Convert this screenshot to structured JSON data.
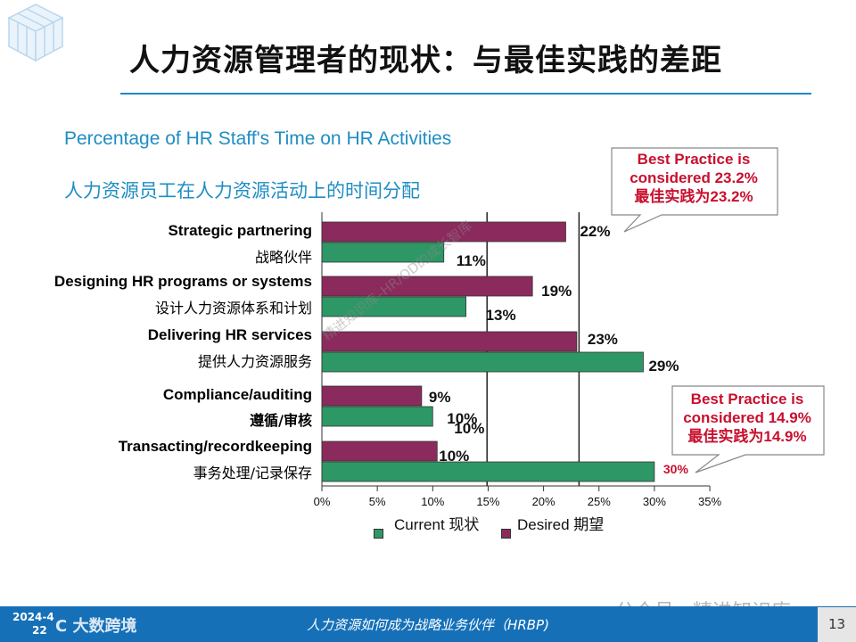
{
  "title": "人力资源管理者的现状：与最佳实践的差距",
  "subtitle_en": "Percentage of HR Staff's Time on HR Activities",
  "subtitle_cn": "人力资源员工在人力资源活动上的时间分配",
  "categories": [
    {
      "en": "Strategic partnering",
      "cn": "战略伙伴"
    },
    {
      "en": "Designing HR programs or systems",
      "cn": "设计人力资源体系和计划"
    },
    {
      "en": "Delivering HR services",
      "cn": "提供人力资源服务"
    },
    {
      "en": "Compliance/auditing",
      "cn": "遵循/审核"
    },
    {
      "en": "Transacting/recordkeeping",
      "cn": "事务处理/记录保存"
    }
  ],
  "legend": {
    "current": "Current  现状",
    "desired": "Desired  期望"
  },
  "callouts": [
    {
      "line1": "Best Practice is",
      "line2": "considered 23.2%",
      "line3": "最佳实践为23.2%"
    },
    {
      "line1": "Best Practice is",
      "line2": "considered 14.9%",
      "line3": "最佳实践为14.9%"
    }
  ],
  "footer": {
    "text": "人力资源如何成为战略业务伙伴（HRBP)",
    "page": "13",
    "date_line1": "2024-4",
    "date_line2": "22",
    "brand": "C 大数跨境"
  },
  "watermarks": {
    "diagonal": "精进知识库–HR/OD的成长智库",
    "wechat": "公众号 · 精进知识库"
  },
  "colors": {
    "current": "#2e9766",
    "desired": "#8b2a5c",
    "accent": "#1f8dc3",
    "callout": "#c8102e",
    "footer": "#1570b8"
  },
  "chart_data": {
    "type": "bar",
    "orientation": "horizontal",
    "title": "Percentage of HR Staff's Time on HR Activities",
    "categories": [
      "Strategic partnering",
      "Designing HR programs or systems",
      "Delivering HR services",
      "Compliance/auditing",
      "Transacting/recordkeeping"
    ],
    "series": [
      {
        "name": "Desired",
        "values": [
          22,
          19,
          23,
          9,
          10.4
        ],
        "labels": [
          "22%",
          "19%",
          "23%",
          "9%",
          "10%"
        ]
      },
      {
        "name": "Current",
        "values": [
          11,
          13,
          29,
          10,
          30
        ],
        "labels": [
          "11%",
          "13%",
          "29%",
          "10%",
          "30%"
        ]
      }
    ],
    "xlim": [
      0,
      35
    ],
    "xticks": [
      "0%",
      "5%",
      "10%",
      "15%",
      "20%",
      "25%",
      "30%",
      "35%"
    ],
    "reference_lines": [
      23.2,
      14.9
    ],
    "legend": "bottom"
  }
}
